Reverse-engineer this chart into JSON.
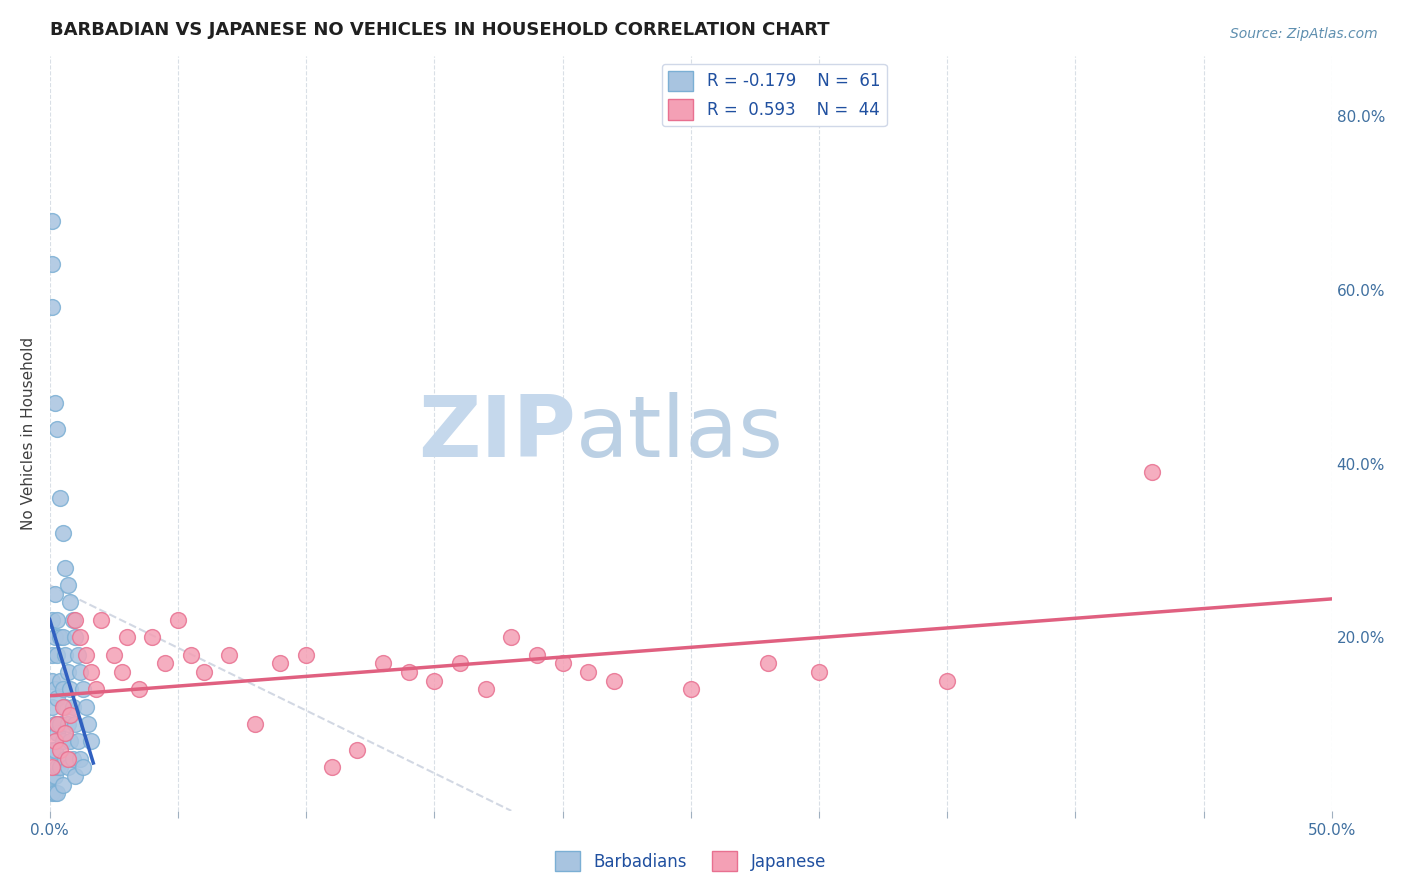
{
  "title": "BARBADIAN VS JAPANESE NO VEHICLES IN HOUSEHOLD CORRELATION CHART",
  "source": "Source: ZipAtlas.com",
  "ylabel": "No Vehicles in Household",
  "xlim": [
    0.0,
    0.5
  ],
  "ylim": [
    0.0,
    0.87
  ],
  "barbadian_color": "#a8c4e0",
  "japanese_color": "#f4a0b5",
  "barbadian_edge": "#7bafd4",
  "japanese_edge": "#e87090",
  "blue_line_color": "#3060c0",
  "pink_line_color": "#e06080",
  "dashed_line_color": "#c0c8d8",
  "legend_R_barbadian": "R = -0.179",
  "legend_N_barbadian": "N =  61",
  "legend_R_japanese": "R =  0.593",
  "legend_N_japanese": "N =  44",
  "barb_x": [
    0.001,
    0.001,
    0.001,
    0.001,
    0.001,
    0.001,
    0.001,
    0.001,
    0.001,
    0.001,
    0.002,
    0.002,
    0.002,
    0.002,
    0.002,
    0.002,
    0.002,
    0.002,
    0.003,
    0.003,
    0.003,
    0.003,
    0.003,
    0.003,
    0.003,
    0.004,
    0.004,
    0.004,
    0.004,
    0.004,
    0.005,
    0.005,
    0.005,
    0.005,
    0.005,
    0.006,
    0.006,
    0.006,
    0.006,
    0.007,
    0.007,
    0.007,
    0.007,
    0.008,
    0.008,
    0.008,
    0.009,
    0.009,
    0.009,
    0.01,
    0.01,
    0.01,
    0.011,
    0.011,
    0.012,
    0.012,
    0.013,
    0.013,
    0.014,
    0.015,
    0.016
  ],
  "barb_y": [
    0.68,
    0.63,
    0.58,
    0.22,
    0.18,
    0.15,
    0.12,
    0.07,
    0.04,
    0.02,
    0.47,
    0.25,
    0.2,
    0.14,
    0.1,
    0.07,
    0.04,
    0.02,
    0.44,
    0.22,
    0.18,
    0.13,
    0.09,
    0.05,
    0.02,
    0.36,
    0.2,
    0.15,
    0.1,
    0.05,
    0.32,
    0.2,
    0.14,
    0.08,
    0.03,
    0.28,
    0.18,
    0.12,
    0.06,
    0.26,
    0.16,
    0.1,
    0.05,
    0.24,
    0.14,
    0.08,
    0.22,
    0.12,
    0.06,
    0.2,
    0.1,
    0.04,
    0.18,
    0.08,
    0.16,
    0.06,
    0.14,
    0.05,
    0.12,
    0.1,
    0.08
  ],
  "jap_x": [
    0.001,
    0.002,
    0.003,
    0.004,
    0.005,
    0.006,
    0.007,
    0.008,
    0.01,
    0.012,
    0.014,
    0.016,
    0.018,
    0.02,
    0.025,
    0.028,
    0.03,
    0.035,
    0.04,
    0.045,
    0.05,
    0.055,
    0.06,
    0.07,
    0.08,
    0.09,
    0.1,
    0.11,
    0.12,
    0.13,
    0.14,
    0.15,
    0.16,
    0.17,
    0.18,
    0.19,
    0.2,
    0.21,
    0.22,
    0.25,
    0.28,
    0.3,
    0.35,
    0.43
  ],
  "jap_y": [
    0.05,
    0.08,
    0.1,
    0.07,
    0.12,
    0.09,
    0.06,
    0.11,
    0.22,
    0.2,
    0.18,
    0.16,
    0.14,
    0.22,
    0.18,
    0.16,
    0.2,
    0.14,
    0.2,
    0.17,
    0.22,
    0.18,
    0.16,
    0.18,
    0.1,
    0.17,
    0.18,
    0.05,
    0.07,
    0.17,
    0.16,
    0.15,
    0.17,
    0.14,
    0.2,
    0.18,
    0.17,
    0.16,
    0.15,
    0.14,
    0.17,
    0.16,
    0.15,
    0.39
  ]
}
